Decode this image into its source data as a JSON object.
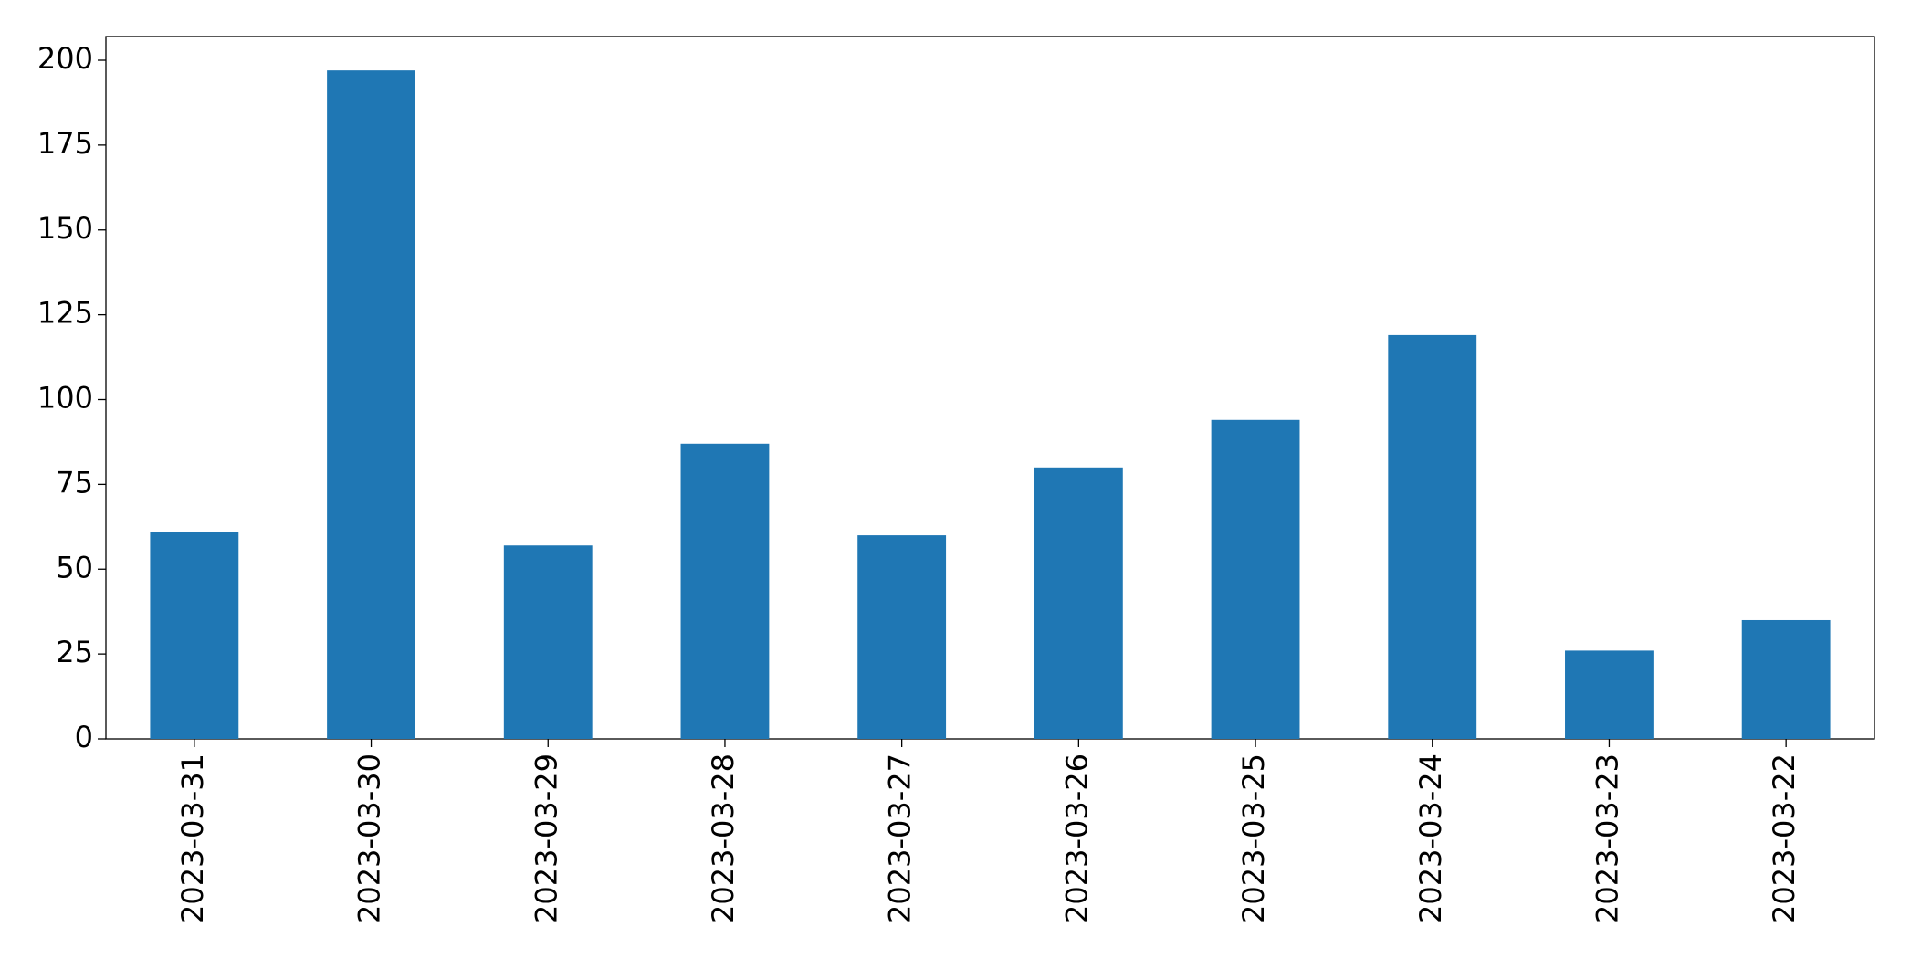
{
  "chart_data": {
    "type": "bar",
    "categories": [
      "2023-03-31",
      "2023-03-30",
      "2023-03-29",
      "2023-03-28",
      "2023-03-27",
      "2023-03-26",
      "2023-03-25",
      "2023-03-24",
      "2023-03-23",
      "2023-03-22"
    ],
    "values": [
      61,
      197,
      57,
      87,
      60,
      80,
      94,
      119,
      26,
      35
    ],
    "color": "#1f77b4",
    "ylim": [
      0,
      207
    ],
    "yticks": [
      0,
      25,
      50,
      75,
      100,
      125,
      150,
      175,
      200
    ],
    "grid": false
  }
}
